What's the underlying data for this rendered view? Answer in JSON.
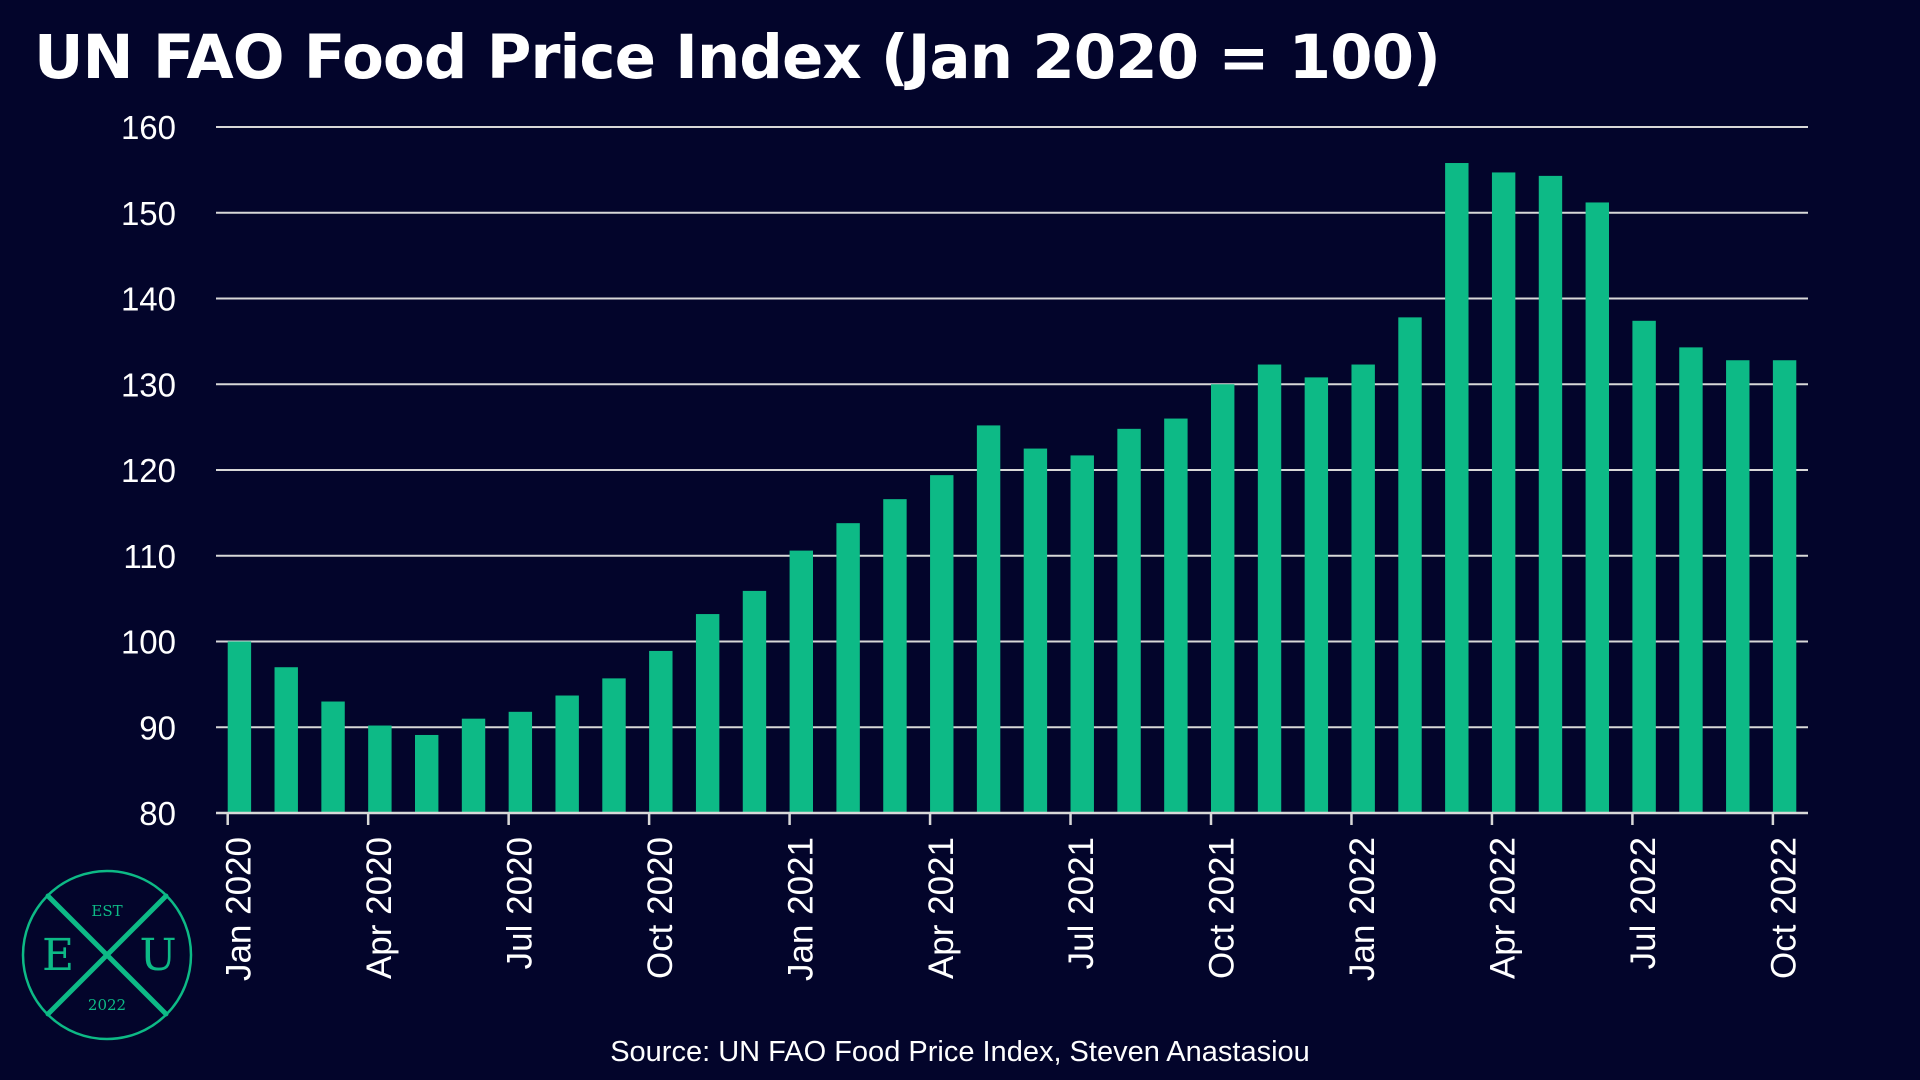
{
  "title": "UN FAO Food Price Index (Jan 2020 = 100)",
  "source": "Source: UN FAO Food Price Index, Steven Anastasiou",
  "colors": {
    "background": "#03052b",
    "bar": "#0dba86",
    "grid": "#d8d8d8",
    "text": "#ffffff",
    "logo": "#0dba86"
  },
  "logo": {
    "top_text": "EST",
    "left_letter": "E",
    "right_letter": "U",
    "bottom_text": "2022"
  },
  "chart_data": {
    "type": "bar",
    "title": "UN FAO Food Price Index (Jan 2020 = 100)",
    "xlabel": "",
    "ylabel": "",
    "ylim": [
      80,
      160
    ],
    "yticks": [
      80,
      90,
      100,
      110,
      120,
      130,
      140,
      150,
      160
    ],
    "grid": true,
    "categories": [
      "Jan 2020",
      "Feb 2020",
      "Mar 2020",
      "Apr 2020",
      "May 2020",
      "Jun 2020",
      "Jul 2020",
      "Aug 2020",
      "Sep 2020",
      "Oct 2020",
      "Nov 2020",
      "Dec 2020",
      "Jan 2021",
      "Feb 2021",
      "Mar 2021",
      "Apr 2021",
      "May 2021",
      "Jun 2021",
      "Jul 2021",
      "Aug 2021",
      "Sep 2021",
      "Oct 2021",
      "Nov 2021",
      "Dec 2021",
      "Jan 2022",
      "Feb 2022",
      "Mar 2022",
      "Apr 2022",
      "May 2022",
      "Jun 2022",
      "Jul 2022",
      "Aug 2022",
      "Sep 2022",
      "Oct 2022"
    ],
    "x_tick_labels": [
      "Jan 2020",
      "Apr 2020",
      "Jul 2020",
      "Oct 2020",
      "Jan 2021",
      "Apr 2021",
      "Jul 2021",
      "Oct 2021",
      "Jan 2022",
      "Apr 2022",
      "Jul 2022",
      "Oct 2022"
    ],
    "values": [
      100.0,
      97.0,
      93.0,
      90.2,
      89.1,
      91.0,
      91.8,
      93.7,
      95.7,
      98.9,
      103.2,
      105.9,
      110.6,
      113.8,
      116.6,
      119.4,
      125.2,
      122.5,
      121.7,
      124.8,
      126.0,
      130.0,
      132.3,
      130.8,
      132.3,
      137.8,
      155.8,
      154.7,
      154.3,
      151.2,
      137.4,
      134.3,
      132.8,
      132.8
    ]
  }
}
